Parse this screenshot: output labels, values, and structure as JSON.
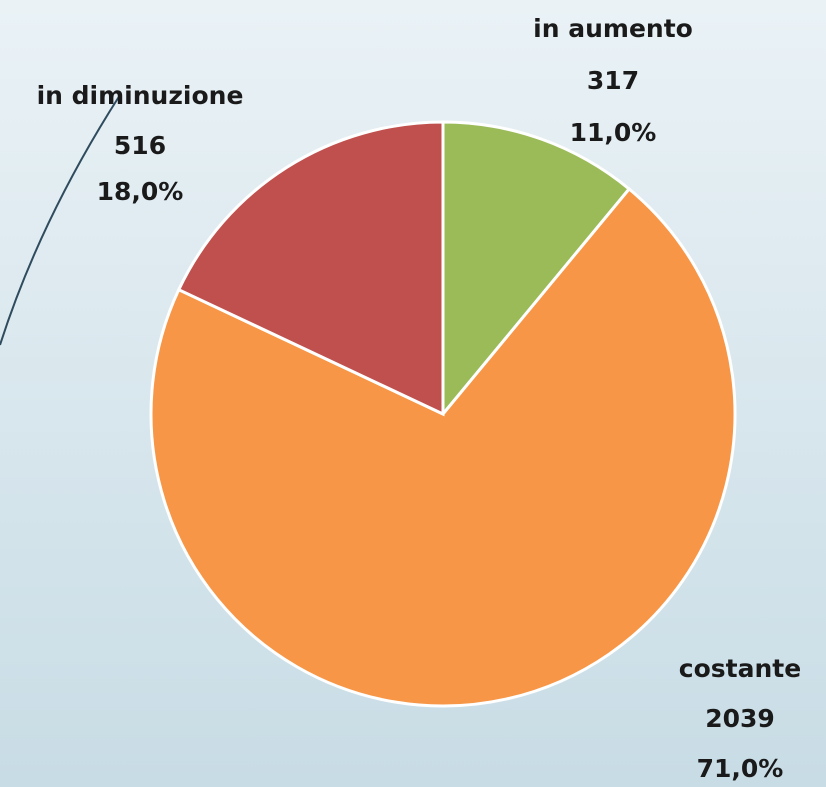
{
  "chart_data": {
    "type": "pie",
    "categories": [
      "in aumento",
      "costante",
      "in diminuzione"
    ],
    "values": [
      317,
      2039,
      516
    ],
    "percentages": [
      11.0,
      71.0,
      18.0
    ],
    "percentage_labels": [
      "11,0%",
      "71,0%",
      "18,0%"
    ],
    "colors": [
      "#9bbb59",
      "#f79646",
      "#c0504d"
    ]
  }
}
